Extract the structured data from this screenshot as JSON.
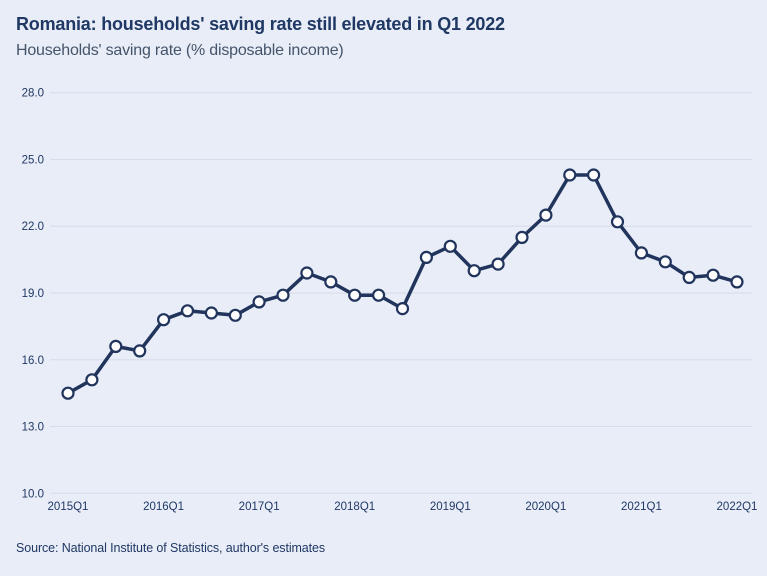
{
  "header": {
    "title": "Romania: households' saving rate still elevated in Q1 2022",
    "subtitle": "Households' saving rate (% disposable income)"
  },
  "footer": {
    "source": "Source: National Institute of Statistics, author's estimates"
  },
  "colors": {
    "background": "#e9edf8",
    "title_text": "#1f3864",
    "subtitle_text": "#44546a",
    "line": "#20345c",
    "marker_fill": "#fdfdfe",
    "grid": "#d7dcea",
    "axis_text": "#1f3864"
  },
  "chart_data": {
    "type": "line",
    "title": "Romania: households' saving rate still elevated in Q1 2022",
    "subtitle": "Households' saving rate (% disposable income)",
    "x": [
      "2015Q1",
      "2015Q2",
      "2015Q3",
      "2015Q4",
      "2016Q1",
      "2016Q2",
      "2016Q3",
      "2016Q4",
      "2017Q1",
      "2017Q2",
      "2017Q3",
      "2017Q4",
      "2018Q1",
      "2018Q2",
      "2018Q3",
      "2018Q4",
      "2019Q1",
      "2019Q2",
      "2019Q3",
      "2019Q4",
      "2020Q1",
      "2020Q2",
      "2020Q3",
      "2020Q4",
      "2021Q1",
      "2021Q2",
      "2021Q3",
      "2021Q4",
      "2022Q1"
    ],
    "values": [
      14.5,
      15.1,
      16.6,
      16.4,
      17.8,
      18.2,
      18.1,
      18.0,
      18.6,
      18.9,
      19.9,
      19.5,
      18.9,
      18.9,
      18.3,
      20.6,
      21.1,
      20.0,
      20.3,
      21.5,
      22.5,
      24.3,
      24.3,
      22.2,
      20.8,
      20.4,
      19.7,
      19.8,
      19.5
    ],
    "x_tick_labels": [
      "2015Q1",
      "2016Q1",
      "2017Q1",
      "2018Q1",
      "2019Q1",
      "2020Q1",
      "2021Q1",
      "2022Q1"
    ],
    "yticks": [
      28.0,
      25.0,
      22.0,
      19.0,
      16.0,
      13.0,
      10.0
    ],
    "ytick_format_decimals": 1,
    "ylim": [
      10.0,
      28.0
    ],
    "grid": true,
    "legend": "none",
    "marker": "circle-white-fill",
    "source": "Source: National Institute of Statistics, author's estimates"
  }
}
